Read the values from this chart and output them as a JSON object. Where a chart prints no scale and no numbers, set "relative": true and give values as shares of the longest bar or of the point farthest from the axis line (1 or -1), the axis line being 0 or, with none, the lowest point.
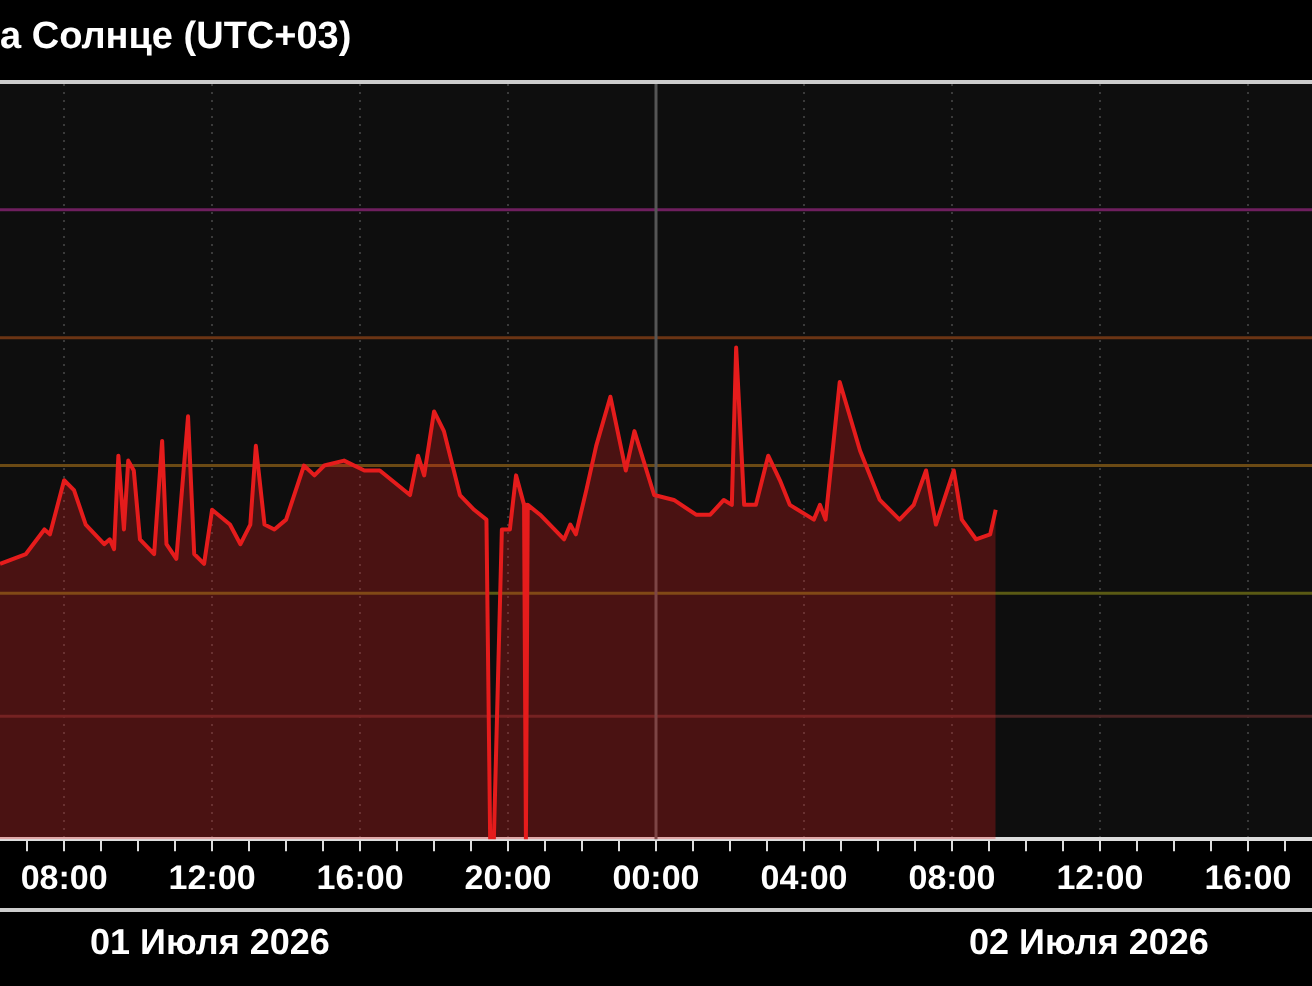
{
  "chart_data": {
    "type": "area",
    "title": "а Солнце (UTC+03)",
    "relative": true,
    "x": [
      "2026-07-01T06:16",
      "2026-07-01T06:58",
      "2026-07-01T07:28",
      "2026-07-01T07:37",
      "2026-07-01T08:00",
      "2026-07-01T08:16",
      "2026-07-01T08:35",
      "2026-07-01T09:05",
      "2026-07-01T09:14",
      "2026-07-01T09:21",
      "2026-07-01T09:28",
      "2026-07-01T09:37",
      "2026-07-01T09:44",
      "2026-07-01T09:53",
      "2026-07-01T10:03",
      "2026-07-01T10:26",
      "2026-07-01T10:39",
      "2026-07-01T10:46",
      "2026-07-01T11:02",
      "2026-07-01T11:21",
      "2026-07-01T11:31",
      "2026-07-01T11:47",
      "2026-07-01T12:00",
      "2026-07-01T12:29",
      "2026-07-01T12:46",
      "2026-07-01T13:02",
      "2026-07-01T13:11",
      "2026-07-01T13:25",
      "2026-07-01T13:41",
      "2026-07-01T14:00",
      "2026-07-01T14:29",
      "2026-07-01T14:46",
      "2026-07-01T15:02",
      "2026-07-01T15:34",
      "2026-07-01T16:07",
      "2026-07-01T16:32",
      "2026-07-01T17:21",
      "2026-07-01T17:34",
      "2026-07-01T17:44",
      "2026-07-01T18:00",
      "2026-07-01T18:16",
      "2026-07-01T18:42",
      "2026-07-01T19:05",
      "2026-07-01T19:25",
      "2026-07-01T19:31",
      "2026-07-01T19:37",
      "2026-07-01T19:50",
      "2026-07-01T20:03",
      "2026-07-01T20:13",
      "2026-07-01T20:26",
      "2026-07-01T20:29",
      "2026-07-01T20:32",
      "2026-07-01T20:52",
      "2026-07-01T21:31",
      "2026-07-01T21:41",
      "2026-07-01T21:50",
      "2026-07-01T22:07",
      "2026-07-01T22:23",
      "2026-07-01T22:46",
      "2026-07-01T23:11",
      "2026-07-01T23:25",
      "2026-07-01T23:57",
      "2026-07-02T00:29",
      "2026-07-02T01:05",
      "2026-07-02T01:28",
      "2026-07-02T01:50",
      "2026-07-02T02:03",
      "2026-07-02T02:10",
      "2026-07-02T02:23",
      "2026-07-02T02:42",
      "2026-07-02T03:02",
      "2026-07-02T03:21",
      "2026-07-02T03:37",
      "2026-07-02T04:16",
      "2026-07-02T04:26",
      "2026-07-02T04:35",
      "2026-07-02T04:58",
      "2026-07-02T05:31",
      "2026-07-02T06:03",
      "2026-07-02T06:35",
      "2026-07-02T06:58",
      "2026-07-02T07:18",
      "2026-07-02T07:34",
      "2026-07-02T08:03",
      "2026-07-02T08:16",
      "2026-07-02T08:39",
      "2026-07-02T09:02",
      "2026-07-02T09:11"
    ],
    "series": [
      {
        "color": "#e51c1c",
        "values": [
          0.56,
          0.58,
          0.63,
          0.62,
          0.73,
          0.71,
          0.64,
          0.6,
          0.61,
          0.59,
          0.78,
          0.63,
          0.77,
          0.75,
          0.61,
          0.58,
          0.81,
          0.6,
          0.57,
          0.86,
          0.58,
          0.56,
          0.67,
          0.64,
          0.6,
          0.64,
          0.8,
          0.64,
          0.63,
          0.65,
          0.76,
          0.74,
          0.76,
          0.77,
          0.75,
          0.75,
          0.7,
          0.78,
          0.74,
          0.87,
          0.83,
          0.7,
          0.67,
          0.65,
          0,
          0,
          0.63,
          0.63,
          0.74,
          0.68,
          0,
          0.68,
          0.66,
          0.61,
          0.64,
          0.62,
          0.71,
          0.8,
          0.9,
          0.75,
          0.83,
          0.7,
          0.69,
          0.66,
          0.66,
          0.69,
          0.68,
          1,
          0.68,
          0.68,
          0.78,
          0.73,
          0.68,
          0.65,
          0.68,
          0.65,
          0.93,
          0.79,
          0.69,
          0.65,
          0.68,
          0.75,
          0.64,
          0.75,
          0.65,
          0.61,
          0.62,
          0.67
        ]
      }
    ],
    "xlim": [
      "2026-07-01T06:16",
      "2026-07-02T17:44"
    ],
    "xticks": [
      {
        "value": "2026-07-01T07:00",
        "label": null
      },
      {
        "value": "2026-07-01T08:00",
        "label": "08:00"
      },
      {
        "value": "2026-07-01T09:00",
        "label": null
      },
      {
        "value": "2026-07-01T10:00",
        "label": null
      },
      {
        "value": "2026-07-01T11:00",
        "label": null
      },
      {
        "value": "2026-07-01T12:00",
        "label": "12:00"
      },
      {
        "value": "2026-07-01T13:00",
        "label": null
      },
      {
        "value": "2026-07-01T14:00",
        "label": null
      },
      {
        "value": "2026-07-01T15:00",
        "label": null
      },
      {
        "value": "2026-07-01T16:00",
        "label": "16:00"
      },
      {
        "value": "2026-07-01T17:00",
        "label": null
      },
      {
        "value": "2026-07-01T18:00",
        "label": null
      },
      {
        "value": "2026-07-01T19:00",
        "label": null
      },
      {
        "value": "2026-07-01T20:00",
        "label": "20:00"
      },
      {
        "value": "2026-07-01T21:00",
        "label": null
      },
      {
        "value": "2026-07-01T22:00",
        "label": null
      },
      {
        "value": "2026-07-01T23:00",
        "label": null
      },
      {
        "value": "2026-07-02T00:00",
        "label": "00:00"
      },
      {
        "value": "2026-07-02T01:00",
        "label": null
      },
      {
        "value": "2026-07-02T02:00",
        "label": null
      },
      {
        "value": "2026-07-02T03:00",
        "label": null
      },
      {
        "value": "2026-07-02T04:00",
        "label": "04:00"
      },
      {
        "value": "2026-07-02T05:00",
        "label": null
      },
      {
        "value": "2026-07-02T06:00",
        "label": null
      },
      {
        "value": "2026-07-02T07:00",
        "label": null
      },
      {
        "value": "2026-07-02T08:00",
        "label": "08:00"
      },
      {
        "value": "2026-07-02T09:00",
        "label": null
      },
      {
        "value": "2026-07-02T10:00",
        "label": null
      },
      {
        "value": "2026-07-02T11:00",
        "label": null
      },
      {
        "value": "2026-07-02T12:00",
        "label": "12:00"
      },
      {
        "value": "2026-07-02T13:00",
        "label": null
      },
      {
        "value": "2026-07-02T14:00",
        "label": null
      },
      {
        "value": "2026-07-02T15:00",
        "label": null
      },
      {
        "value": "2026-07-02T16:00",
        "label": "16:00"
      },
      {
        "value": "2026-07-02T17:00",
        "label": null
      }
    ],
    "ref_lines": [
      {
        "axis": "y",
        "value": 1.28,
        "color": "#6e1f5e"
      },
      {
        "axis": "y",
        "value": 1.02,
        "color": "#6b3414"
      },
      {
        "axis": "y",
        "value": 0.76,
        "color": "#6b4a14"
      },
      {
        "axis": "y",
        "value": 0.5,
        "color": "#5a5a14"
      },
      {
        "axis": "y",
        "value": 0.25,
        "color": "#4a2424"
      },
      {
        "axis": "x",
        "value": "2026-07-02T00:00",
        "color": "#555555"
      }
    ],
    "annotations": [
      "01 Июля 2026",
      "02 Июля 2026"
    ],
    "grid": "x",
    "legend": false,
    "marker": "none",
    "line_style": "solid"
  }
}
